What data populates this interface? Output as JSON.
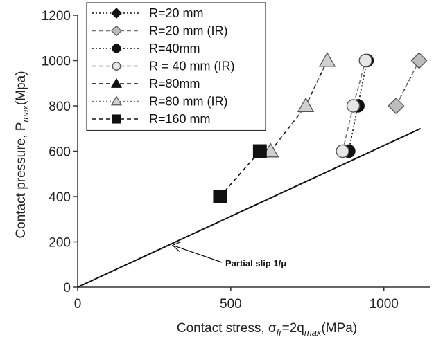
{
  "chart_data": {
    "type": "scatter",
    "title": "",
    "xlabel": {
      "prefix": "Contact stress, ",
      "sym": "σ",
      "sym_sub": "fr",
      "mid": "=2q",
      "mid_sub": "max",
      "suffix": "(MPa)"
    },
    "ylabel": {
      "prefix": "Contact pressure, P",
      "sub": "max",
      "suffix": "(Mpa)"
    },
    "xlim": [
      0,
      1150
    ],
    "ylim": [
      0,
      1200
    ],
    "xticks": [
      0,
      500,
      1000
    ],
    "yticks": [
      0,
      200,
      400,
      600,
      800,
      1000,
      1200
    ],
    "grid": false,
    "legend_position": "top-left",
    "series": [
      {
        "name": "R=20 mm",
        "marker": "diamond",
        "filled": true,
        "line": "dotted",
        "points": [
          [
            1040,
            800
          ],
          [
            1115,
            1000
          ]
        ]
      },
      {
        "name": "R=20 mm (IR)",
        "marker": "diamond",
        "filled": false,
        "line": "dashed",
        "points": [
          [
            1040,
            800
          ],
          [
            1115,
            1000
          ]
        ]
      },
      {
        "name": "R=40mm",
        "marker": "circle",
        "filled": true,
        "line": "dotted",
        "points": [
          [
            885,
            600
          ],
          [
            915,
            800
          ],
          [
            945,
            1000
          ]
        ]
      },
      {
        "name": "R = 40 mm (IR)",
        "marker": "circle",
        "filled": false,
        "line": "dashed",
        "points": [
          [
            865,
            600
          ],
          [
            900,
            800
          ],
          [
            940,
            1000
          ]
        ]
      },
      {
        "name": "R=80mm",
        "marker": "triangle",
        "filled": true,
        "line": "dashed",
        "points": [
          [
            630,
            600
          ],
          [
            745,
            800
          ],
          [
            815,
            1000
          ]
        ]
      },
      {
        "name": "R=80 mm (IR)",
        "marker": "triangle",
        "filled": false,
        "line": "dotted",
        "points": [
          [
            630,
            600
          ],
          [
            745,
            800
          ],
          [
            815,
            1000
          ]
        ]
      },
      {
        "name": "R=160 mm",
        "marker": "square",
        "filled": true,
        "line": "dashed",
        "points": [
          [
            465,
            400
          ],
          [
            595,
            600
          ]
        ]
      }
    ],
    "reference_line": {
      "x": [
        0,
        1120
      ],
      "y": [
        0,
        700
      ]
    },
    "annotation": {
      "text": "Partial slip 1/μ",
      "arrow_to": [
        310,
        185
      ]
    }
  }
}
